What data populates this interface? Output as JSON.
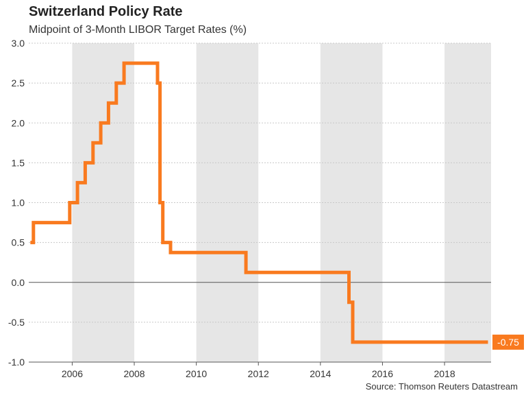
{
  "chart_data": {
    "type": "line",
    "title": "Switzerland Policy Rate",
    "subtitle": "Midpoint of 3-Month LIBOR Target Rates (%)",
    "source": "Source: Thomson Reuters Datastream",
    "xlabel": "",
    "ylabel": "",
    "xlim": [
      2004.6,
      2019.5
    ],
    "ylim": [
      -1.0,
      3.0
    ],
    "y_ticks": [
      "-1.0",
      "-0.5",
      "0.0",
      "0.5",
      "1.0",
      "1.5",
      "2.0",
      "2.5",
      "3.0"
    ],
    "x_ticks": [
      "2006",
      "2008",
      "2010",
      "2012",
      "2014",
      "2016",
      "2018"
    ],
    "shaded_periods": [
      [
        2006,
        2008
      ],
      [
        2010,
        2012
      ],
      [
        2014,
        2016
      ],
      [
        2018,
        2019.5
      ]
    ],
    "grid": true,
    "zero_line": true,
    "step": true,
    "series": [
      {
        "name": "Switzerland Policy Rate",
        "color": "#f97a1f",
        "points": [
          [
            2004.65,
            0.5
          ],
          [
            2004.75,
            0.75
          ],
          [
            2005.92,
            1.0
          ],
          [
            2006.17,
            1.25
          ],
          [
            2006.42,
            1.5
          ],
          [
            2006.67,
            1.75
          ],
          [
            2006.92,
            2.0
          ],
          [
            2007.17,
            2.25
          ],
          [
            2007.42,
            2.5
          ],
          [
            2007.67,
            2.75
          ],
          [
            2008.75,
            2.5
          ],
          [
            2008.83,
            1.0
          ],
          [
            2008.92,
            0.5
          ],
          [
            2009.17,
            0.375
          ],
          [
            2011.6,
            0.125
          ],
          [
            2014.92,
            -0.25
          ],
          [
            2015.04,
            -0.75
          ],
          [
            2019.4,
            -0.75
          ]
        ]
      }
    ],
    "end_label": "-0.75"
  }
}
